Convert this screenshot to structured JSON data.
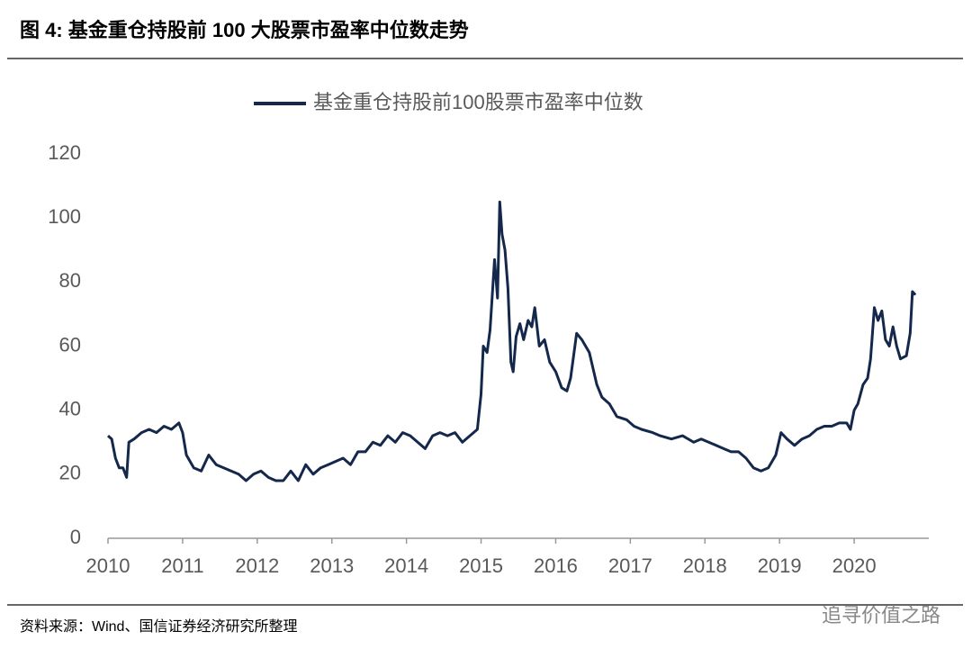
{
  "chart_data": {
    "type": "line",
    "title": "图 4:  基金重仓持股前 100 大股票市盈率中位数走势",
    "source": "资料来源：Wind、国信证券经济研究所整理",
    "watermark": "追寻价值之路",
    "xlim": [
      2010,
      2021
    ],
    "xticks": [
      2010,
      2011,
      2012,
      2013,
      2014,
      2015,
      2016,
      2017,
      2018,
      2019,
      2020
    ],
    "ylim": [
      0,
      120
    ],
    "yticks": [
      0,
      20,
      40,
      60,
      80,
      100,
      120
    ],
    "grid": false,
    "legend": "top",
    "x": [
      2010.0,
      2010.05,
      2010.1,
      2010.15,
      2010.2,
      2010.25,
      2010.28,
      2010.35,
      2010.45,
      2010.55,
      2010.65,
      2010.75,
      2010.85,
      2010.95,
      2011.0,
      2011.05,
      2011.15,
      2011.25,
      2011.35,
      2011.45,
      2011.55,
      2011.65,
      2011.75,
      2011.85,
      2011.95,
      2012.05,
      2012.15,
      2012.25,
      2012.35,
      2012.45,
      2012.55,
      2012.65,
      2012.75,
      2012.85,
      2012.95,
      2013.05,
      2013.15,
      2013.25,
      2013.35,
      2013.45,
      2013.55,
      2013.65,
      2013.75,
      2013.85,
      2013.95,
      2014.05,
      2014.15,
      2014.25,
      2014.35,
      2014.45,
      2014.55,
      2014.65,
      2014.75,
      2014.85,
      2014.95,
      2015.0,
      2015.03,
      2015.08,
      2015.12,
      2015.18,
      2015.22,
      2015.25,
      2015.28,
      2015.32,
      2015.36,
      2015.4,
      2015.43,
      2015.47,
      2015.52,
      2015.57,
      2015.63,
      2015.68,
      2015.72,
      2015.78,
      2015.85,
      2015.92,
      2016.0,
      2016.08,
      2016.15,
      2016.2,
      2016.28,
      2016.35,
      2016.45,
      2016.55,
      2016.62,
      2016.72,
      2016.82,
      2016.95,
      2017.05,
      2017.15,
      2017.3,
      2017.4,
      2017.55,
      2017.7,
      2017.85,
      2017.95,
      2018.05,
      2018.15,
      2018.25,
      2018.35,
      2018.45,
      2018.55,
      2018.65,
      2018.75,
      2018.85,
      2018.95,
      2019.02,
      2019.1,
      2019.2,
      2019.3,
      2019.4,
      2019.5,
      2019.6,
      2019.7,
      2019.8,
      2019.9,
      2019.95,
      2020.0,
      2020.05,
      2020.12,
      2020.18,
      2020.22,
      2020.27,
      2020.32,
      2020.37,
      2020.42,
      2020.47,
      2020.52,
      2020.57,
      2020.62,
      2020.7,
      2020.75,
      2020.78,
      2020.82
    ],
    "series": [
      {
        "name": "基金重仓持股前100股票市盈率中位数",
        "color": "#14284b",
        "values": [
          32,
          31,
          25,
          22,
          22,
          19,
          30,
          31,
          33,
          34,
          33,
          35,
          34,
          36,
          33,
          26,
          22,
          21,
          26,
          23,
          22,
          21,
          20,
          18,
          20,
          21,
          19,
          18,
          18,
          21,
          18,
          23,
          20,
          22,
          23,
          24,
          25,
          23,
          27,
          27,
          30,
          29,
          32,
          30,
          33,
          32,
          30,
          28,
          32,
          33,
          32,
          33,
          30,
          32,
          34,
          45,
          60,
          58,
          65,
          87,
          75,
          105,
          95,
          90,
          78,
          55,
          52,
          63,
          67,
          62,
          68,
          66,
          72,
          60,
          62,
          55,
          52,
          47,
          46,
          50,
          64,
          62,
          58,
          48,
          44,
          42,
          38,
          37,
          35,
          34,
          33,
          32,
          31,
          32,
          30,
          31,
          30,
          29,
          28,
          27,
          27,
          25,
          22,
          21,
          22,
          26,
          33,
          31,
          29,
          31,
          32,
          34,
          35,
          35,
          36,
          36,
          34,
          40,
          42,
          48,
          50,
          56,
          72,
          68,
          71,
          62,
          60,
          66,
          60,
          56,
          57,
          64,
          77,
          76
        ]
      }
    ]
  }
}
